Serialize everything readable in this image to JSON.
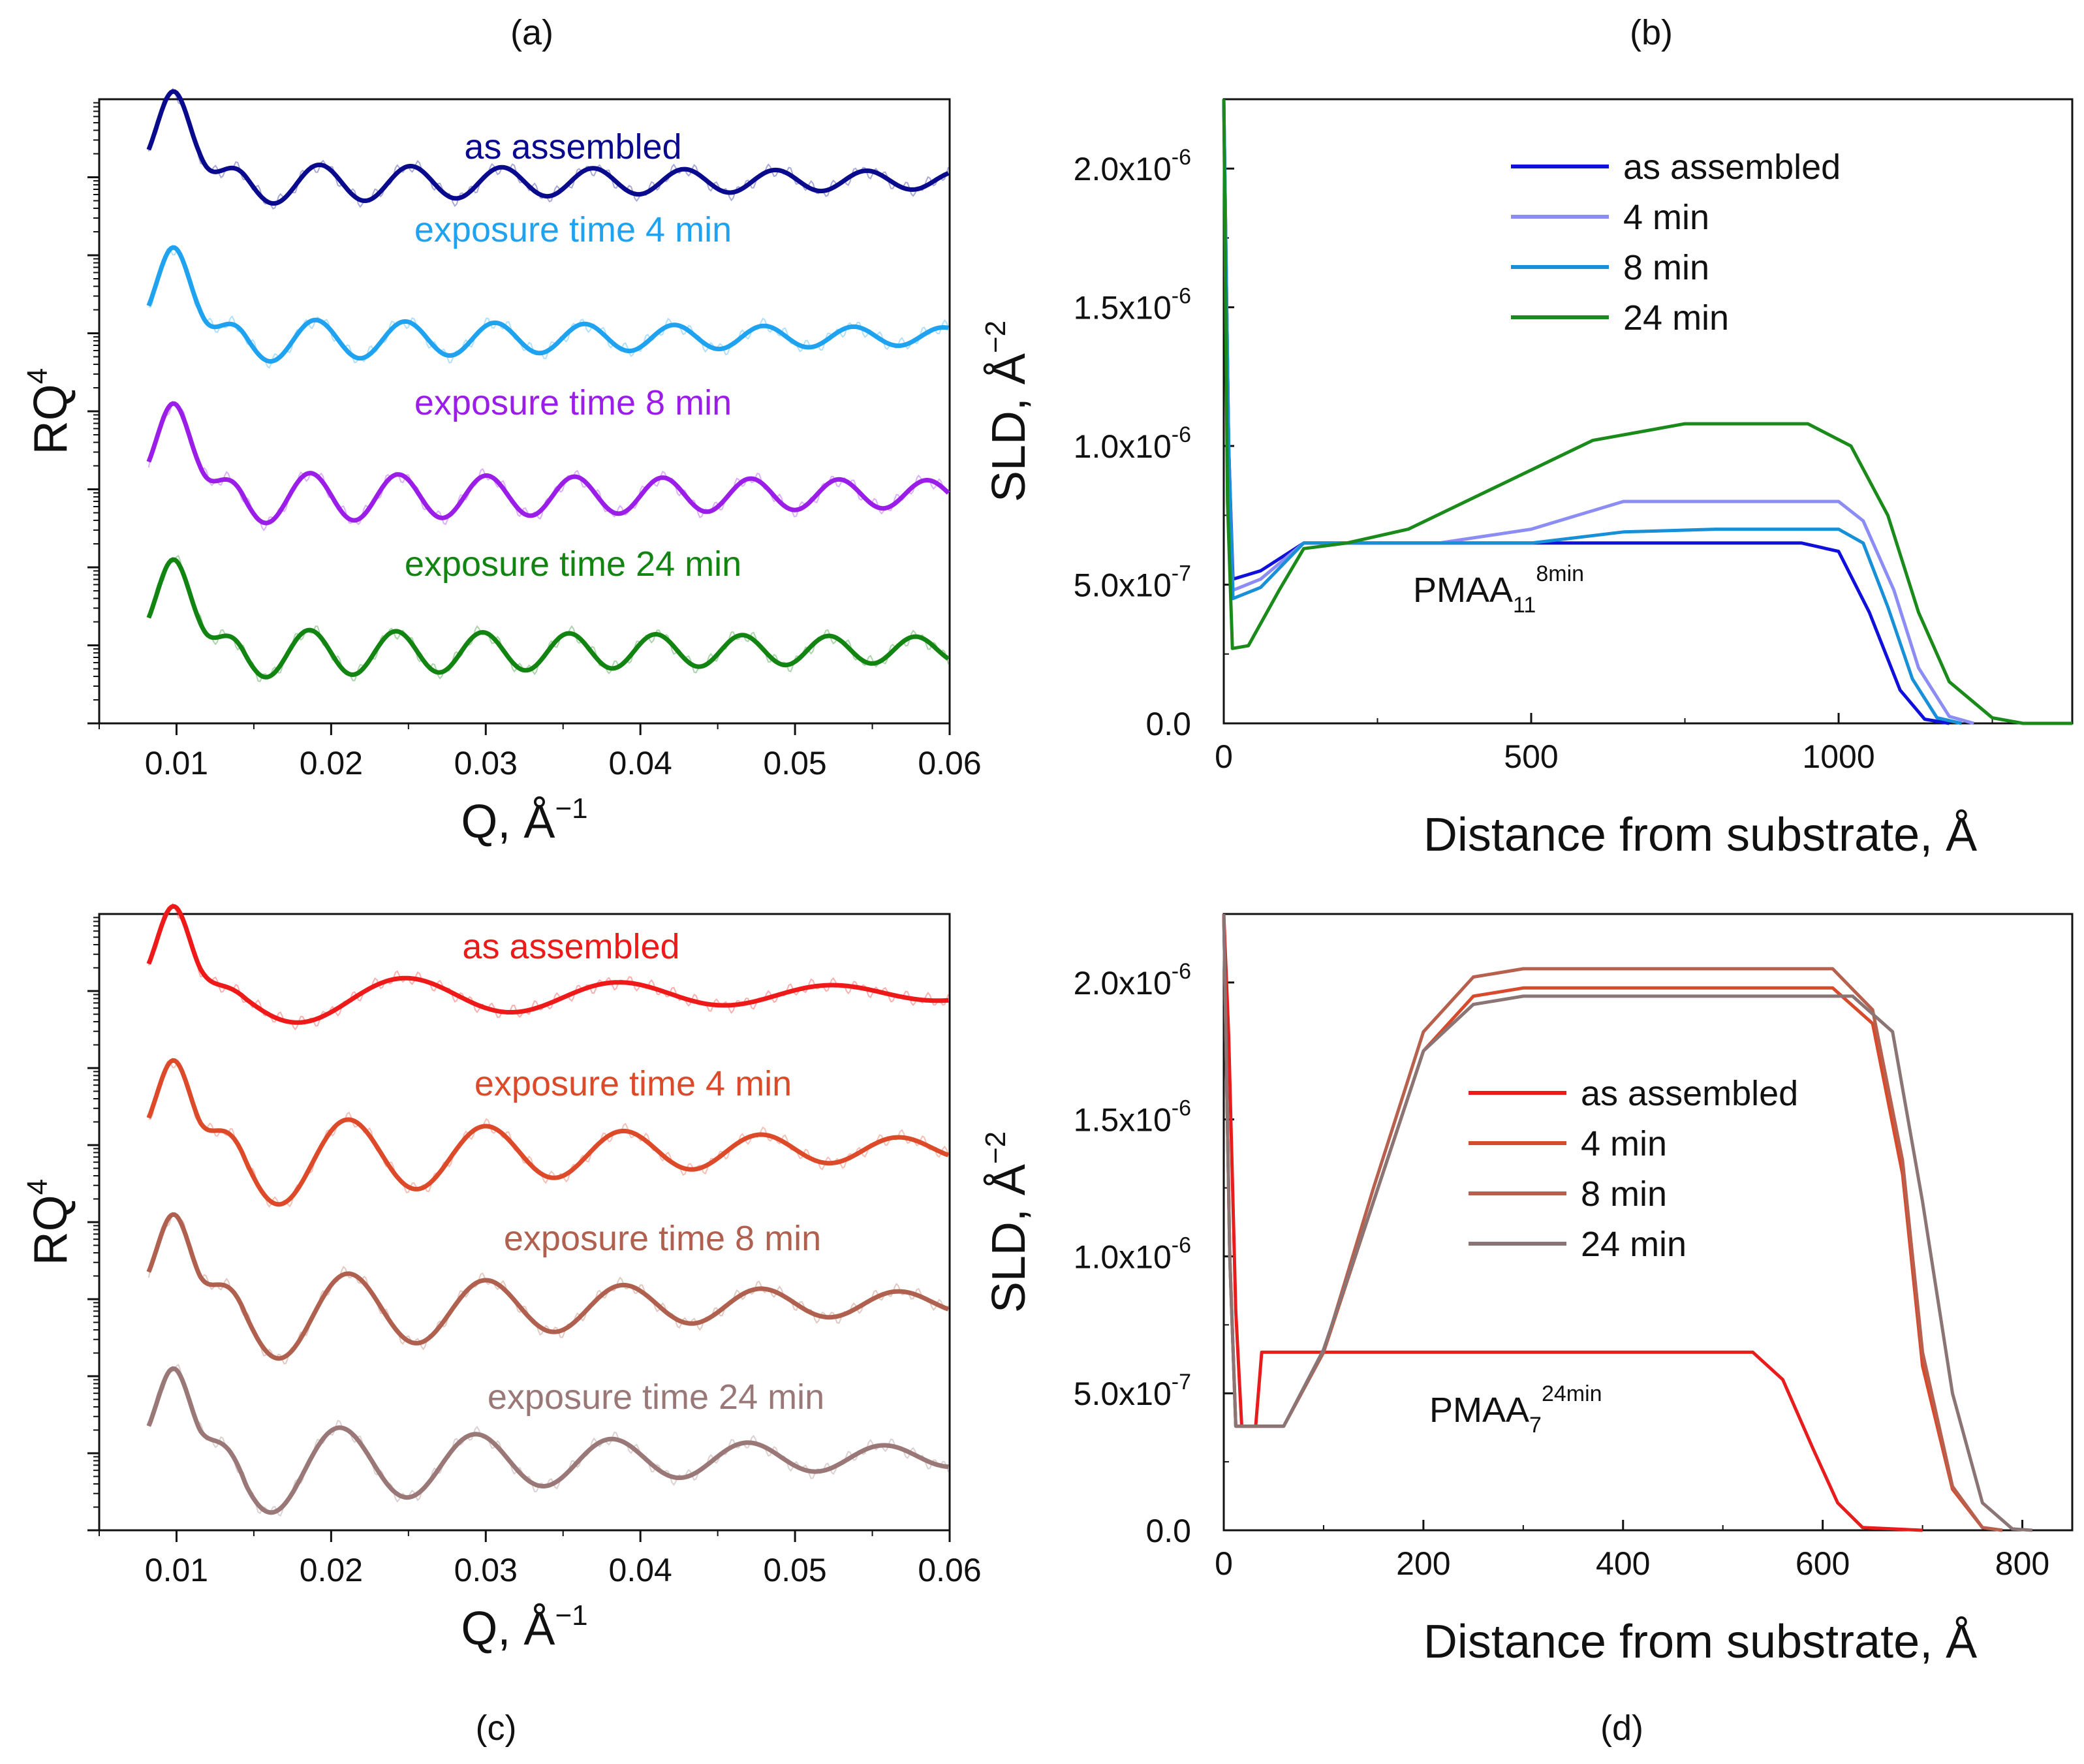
{
  "figure": {
    "panel_labels": [
      "(a)",
      "(b)",
      "(c)",
      "(d)"
    ]
  },
  "chart_data": [
    {
      "panel": "(a)",
      "type": "line",
      "xlabel": "Q, Å",
      "xlabel_exp": "−1",
      "ylabel": "RQ",
      "ylabel_exp": "4",
      "xlim": [
        0.005,
        0.06
      ],
      "xticks": [
        0.01,
        0.02,
        0.03,
        0.04,
        0.05,
        0.06
      ],
      "xtick_labels": [
        "0.01",
        "0.02",
        "0.03",
        "0.04",
        "0.05",
        "0.06"
      ],
      "ylim": [
        0,
        4
      ],
      "series": [
        {
          "name": "as assembled",
          "color": "#0a0a8c",
          "offset": 3,
          "fringe_period": 0.0059,
          "fringe_amp": 0.14,
          "first_min": 0.0163,
          "damping": 0.055,
          "end_level": 0.0
        },
        {
          "name": "exposure time 4 min",
          "color": "#1fa2ef",
          "offset": 2,
          "fringe_period": 0.0058,
          "fringe_amp": 0.15,
          "first_min": 0.0161,
          "damping": 0.05,
          "end_level": 0.0
        },
        {
          "name": "exposure time 8 min",
          "color": "#9b1ee8",
          "offset": 1,
          "fringe_period": 0.0057,
          "fringe_amp": 0.18,
          "first_min": 0.0158,
          "damping": 0.07,
          "end_level": 0.0
        },
        {
          "name": "exposure time 24 min",
          "color": "#128412",
          "offset": 0,
          "fringe_period": 0.0056,
          "fringe_amp": 0.17,
          "first_min": 0.0158,
          "damping": 0.07,
          "end_level": 0.0
        }
      ]
    },
    {
      "panel": "(b)",
      "type": "line",
      "xlabel": "Distance from substrate, Å",
      "ylabel": "SLD, Å",
      "ylabel_exp": "−2",
      "xlim": [
        0,
        1380
      ],
      "ylim": [
        0,
        2.25e-06
      ],
      "xticks": [
        0,
        500,
        1000
      ],
      "xtick_labels": [
        "0",
        "500",
        "1000"
      ],
      "yticks": [
        0,
        5e-07,
        1e-06,
        1.5e-06,
        2e-06
      ],
      "ytick_mantissas": [
        "0.0",
        "5.0x10",
        "1.0x10",
        "1.5x10",
        "2.0x10"
      ],
      "ytick_exponents": [
        "",
        "-7",
        "-6",
        "-6",
        "-6"
      ],
      "annotation": {
        "text": "PMAA",
        "sub": "11",
        "sup": "8min"
      },
      "series": [
        {
          "name": "as assembled",
          "color": "#1010dc",
          "points": [
            [
              0,
              2.25e-06
            ],
            [
              8,
              1e-06
            ],
            [
              15,
              5.2e-07
            ],
            [
              60,
              5.5e-07
            ],
            [
              130,
              6.5e-07
            ],
            [
              940,
              6.5e-07
            ],
            [
              1000,
              6.2e-07
            ],
            [
              1050,
              4e-07
            ],
            [
              1100,
              1.2e-07
            ],
            [
              1140,
              1.5e-08
            ],
            [
              1180,
              0
            ]
          ]
        },
        {
          "name": "4 min",
          "color": "#8c8cf5",
          "points": [
            [
              0,
              2.25e-06
            ],
            [
              8,
              1e-06
            ],
            [
              15,
              4.8e-07
            ],
            [
              60,
              5.2e-07
            ],
            [
              130,
              6.5e-07
            ],
            [
              350,
              6.5e-07
            ],
            [
              500,
              7e-07
            ],
            [
              650,
              8e-07
            ],
            [
              1000,
              8e-07
            ],
            [
              1040,
              7.3e-07
            ],
            [
              1090,
              4.8e-07
            ],
            [
              1130,
              2e-07
            ],
            [
              1180,
              2.5e-08
            ],
            [
              1220,
              0
            ]
          ]
        },
        {
          "name": "8 min",
          "color": "#1890d8",
          "points": [
            [
              0,
              2.25e-06
            ],
            [
              8,
              1e-06
            ],
            [
              15,
              4.5e-07
            ],
            [
              60,
              4.9e-07
            ],
            [
              130,
              6.5e-07
            ],
            [
              500,
              6.5e-07
            ],
            [
              650,
              6.9e-07
            ],
            [
              800,
              7e-07
            ],
            [
              1000,
              7e-07
            ],
            [
              1040,
              6.5e-07
            ],
            [
              1080,
              4.2e-07
            ],
            [
              1120,
              1.6e-07
            ],
            [
              1160,
              2e-08
            ],
            [
              1200,
              0
            ]
          ]
        },
        {
          "name": "24 min",
          "color": "#1a8a1a",
          "points": [
            [
              0,
              2.25e-06
            ],
            [
              6,
              8e-07
            ],
            [
              14,
              2.7e-07
            ],
            [
              40,
              2.8e-07
            ],
            [
              90,
              4.8e-07
            ],
            [
              130,
              6.3e-07
            ],
            [
              200,
              6.5e-07
            ],
            [
              300,
              7e-07
            ],
            [
              450,
              8.6e-07
            ],
            [
              600,
              1.02e-06
            ],
            [
              750,
              1.08e-06
            ],
            [
              950,
              1.08e-06
            ],
            [
              1020,
              1e-06
            ],
            [
              1080,
              7.5e-07
            ],
            [
              1130,
              4e-07
            ],
            [
              1180,
              1.5e-07
            ],
            [
              1250,
              2e-08
            ],
            [
              1300,
              0
            ],
            [
              1380,
              0
            ]
          ]
        }
      ]
    },
    {
      "panel": "(c)",
      "type": "line",
      "xlabel": "Q, Å",
      "xlabel_exp": "−1",
      "ylabel": "RQ",
      "ylabel_exp": "4",
      "xlim": [
        0.005,
        0.06
      ],
      "xticks": [
        0.01,
        0.02,
        0.03,
        0.04,
        0.05,
        0.06
      ],
      "xtick_labels": [
        "0.01",
        "0.02",
        "0.03",
        "0.04",
        "0.05",
        "0.06"
      ],
      "ylim": [
        0,
        4
      ],
      "series": [
        {
          "name": "as assembled",
          "color": "#ee1a1a",
          "offset": 3,
          "fringe_period": 0.0138,
          "fringe_amp": 0.17,
          "first_min": 0.018,
          "damping": 0.035,
          "end_level": 0.0
        },
        {
          "name": "exposure time 4 min",
          "color": "#dd4a2a",
          "offset": 2,
          "fringe_period": 0.0089,
          "fringe_amp": 0.32,
          "first_min": 0.0167,
          "damping": 0.03,
          "end_level": 0.0
        },
        {
          "name": "exposure time 8 min",
          "color": "#b0604e",
          "offset": 1,
          "fringe_period": 0.0089,
          "fringe_amp": 0.32,
          "first_min": 0.0167,
          "damping": 0.03,
          "end_level": 0.0
        },
        {
          "name": "exposure time 24 min",
          "color": "#9a7878",
          "offset": 0,
          "fringe_period": 0.0088,
          "fringe_amp": 0.32,
          "first_min": 0.0162,
          "damping": 0.03,
          "end_level": 0.0
        }
      ]
    },
    {
      "panel": "(d)",
      "type": "line",
      "xlabel": "Distance from substrate, Å",
      "ylabel": "SLD, Å",
      "ylabel_exp": "−2",
      "xlim": [
        0,
        850
      ],
      "ylim": [
        0,
        2.25e-06
      ],
      "xticks": [
        0,
        200,
        400,
        600,
        800
      ],
      "xtick_labels": [
        "0",
        "200",
        "400",
        "600",
        "800"
      ],
      "yticks": [
        0,
        5e-07,
        1e-06,
        1.5e-06,
        2e-06
      ],
      "ytick_mantissas": [
        "0.0",
        "5.0x10",
        "1.0x10",
        "1.5x10",
        "2.0x10"
      ],
      "ytick_exponents": [
        "",
        "-7",
        "-6",
        "-6",
        "-6"
      ],
      "annotation": {
        "text": "PMAA",
        "sub": "7",
        "sup": "24min"
      },
      "series": [
        {
          "name": "as assembled",
          "color": "#e81c1c",
          "points": [
            [
              0,
              2.25e-06
            ],
            [
              5,
              1.8e-06
            ],
            [
              12,
              8e-07
            ],
            [
              18,
              3.8e-07
            ],
            [
              32,
              3.8e-07
            ],
            [
              38,
              6.5e-07
            ],
            [
              530,
              6.5e-07
            ],
            [
              560,
              5.5e-07
            ],
            [
              590,
              3e-07
            ],
            [
              615,
              1e-07
            ],
            [
              640,
              1e-08
            ],
            [
              700,
              0
            ]
          ]
        },
        {
          "name": "4 min",
          "color": "#d84a2c",
          "points": [
            [
              0,
              2.25e-06
            ],
            [
              6,
              1e-06
            ],
            [
              12,
              3.8e-07
            ],
            [
              60,
              3.8e-07
            ],
            [
              100,
              6.5e-07
            ],
            [
              150,
              1.2e-06
            ],
            [
              200,
              1.75e-06
            ],
            [
              250,
              1.95e-06
            ],
            [
              300,
              1.98e-06
            ],
            [
              610,
              1.98e-06
            ],
            [
              650,
              1.85e-06
            ],
            [
              680,
              1.3e-06
            ],
            [
              700,
              6e-07
            ],
            [
              730,
              1.5e-07
            ],
            [
              760,
              1e-08
            ],
            [
              780,
              0
            ]
          ]
        },
        {
          "name": "8 min",
          "color": "#b8604e",
          "points": [
            [
              0,
              2.25e-06
            ],
            [
              6,
              1e-06
            ],
            [
              12,
              3.8e-07
            ],
            [
              60,
              3.8e-07
            ],
            [
              100,
              6.5e-07
            ],
            [
              150,
              1.25e-06
            ],
            [
              200,
              1.82e-06
            ],
            [
              250,
              2.02e-06
            ],
            [
              300,
              2.05e-06
            ],
            [
              610,
              2.05e-06
            ],
            [
              650,
              1.9e-06
            ],
            [
              680,
              1.35e-06
            ],
            [
              700,
              6.5e-07
            ],
            [
              730,
              1.6e-07
            ],
            [
              760,
              1e-08
            ],
            [
              780,
              0
            ]
          ]
        },
        {
          "name": "24 min",
          "color": "#8a7474",
          "points": [
            [
              0,
              2.25e-06
            ],
            [
              6,
              1e-06
            ],
            [
              12,
              3.8e-07
            ],
            [
              60,
              3.8e-07
            ],
            [
              100,
              6.6e-07
            ],
            [
              150,
              1.2e-06
            ],
            [
              200,
              1.75e-06
            ],
            [
              250,
              1.92e-06
            ],
            [
              300,
              1.95e-06
            ],
            [
              630,
              1.95e-06
            ],
            [
              670,
              1.82e-06
            ],
            [
              700,
              1.2e-06
            ],
            [
              730,
              5e-07
            ],
            [
              760,
              1e-07
            ],
            [
              790,
              5e-09
            ],
            [
              810,
              0
            ]
          ]
        }
      ]
    }
  ]
}
